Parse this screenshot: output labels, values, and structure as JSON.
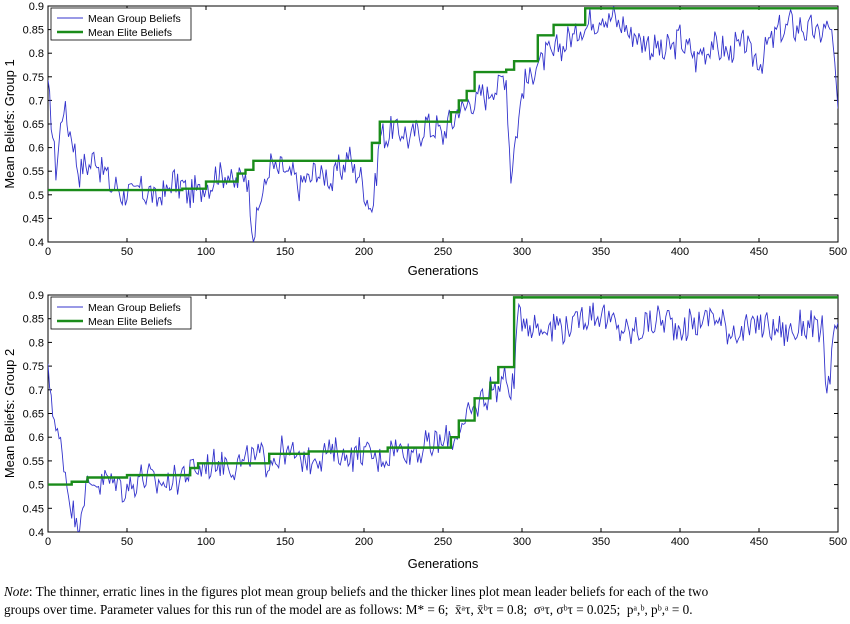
{
  "chart_data": [
    {
      "type": "line",
      "ylabel": "Mean Beliefs: Group 1",
      "xlabel": "Generations",
      "xlim": [
        0,
        500
      ],
      "ylim": [
        0.4,
        0.9
      ],
      "xticks": [
        "0",
        "50",
        "100",
        "150",
        "200",
        "250",
        "300",
        "350",
        "400",
        "450",
        "500"
      ],
      "yticks": [
        "0.4",
        "0.45",
        "0.5",
        "0.55",
        "0.6",
        "0.65",
        "0.7",
        "0.75",
        "0.8",
        "0.85",
        "0.9"
      ],
      "grid": false,
      "legend_position": "top-left",
      "series": [
        {
          "name": "Mean Group Beliefs",
          "color": "#3333cc",
          "style": "thin-erratic",
          "anchors": [
            [
              0,
              0.72
            ],
            [
              5,
              0.56
            ],
            [
              10,
              0.69
            ],
            [
              20,
              0.55
            ],
            [
              30,
              0.58
            ],
            [
              40,
              0.52
            ],
            [
              50,
              0.5
            ],
            [
              60,
              0.51
            ],
            [
              70,
              0.49
            ],
            [
              80,
              0.53
            ],
            [
              90,
              0.5
            ],
            [
              100,
              0.52
            ],
            [
              110,
              0.55
            ],
            [
              120,
              0.52
            ],
            [
              125,
              0.56
            ],
            [
              130,
              0.42
            ],
            [
              140,
              0.56
            ],
            [
              150,
              0.55
            ],
            [
              160,
              0.52
            ],
            [
              170,
              0.55
            ],
            [
              180,
              0.53
            ],
            [
              190,
              0.58
            ],
            [
              200,
              0.52
            ],
            [
              205,
              0.46
            ],
            [
              210,
              0.62
            ],
            [
              220,
              0.64
            ],
            [
              230,
              0.62
            ],
            [
              240,
              0.65
            ],
            [
              250,
              0.63
            ],
            [
              260,
              0.68
            ],
            [
              270,
              0.7
            ],
            [
              280,
              0.72
            ],
            [
              290,
              0.75
            ],
            [
              293,
              0.54
            ],
            [
              300,
              0.72
            ],
            [
              310,
              0.78
            ],
            [
              320,
              0.8
            ],
            [
              330,
              0.83
            ],
            [
              340,
              0.86
            ],
            [
              350,
              0.88
            ],
            [
              360,
              0.87
            ],
            [
              370,
              0.84
            ],
            [
              380,
              0.82
            ],
            [
              390,
              0.8
            ],
            [
              400,
              0.83
            ],
            [
              410,
              0.79
            ],
            [
              420,
              0.82
            ],
            [
              430,
              0.8
            ],
            [
              440,
              0.82
            ],
            [
              450,
              0.78
            ],
            [
              460,
              0.84
            ],
            [
              470,
              0.86
            ],
            [
              480,
              0.85
            ],
            [
              490,
              0.84
            ],
            [
              495,
              0.87
            ],
            [
              500,
              0.68
            ]
          ]
        },
        {
          "name": "Mean Elite Beliefs",
          "color": "#1a8c1a",
          "style": "thick-step",
          "steps": [
            [
              0,
              0.51
            ],
            [
              85,
              0.513
            ],
            [
              100,
              0.528
            ],
            [
              120,
              0.545
            ],
            [
              125,
              0.553
            ],
            [
              130,
              0.572
            ],
            [
              205,
              0.61
            ],
            [
              210,
              0.655
            ],
            [
              255,
              0.675
            ],
            [
              260,
              0.7
            ],
            [
              265,
              0.72
            ],
            [
              270,
              0.76
            ],
            [
              290,
              0.765
            ],
            [
              295,
              0.783
            ],
            [
              310,
              0.838
            ],
            [
              320,
              0.86
            ],
            [
              340,
              0.895
            ],
            [
              500,
              0.895
            ]
          ]
        }
      ]
    },
    {
      "type": "line",
      "ylabel": "Mean Beliefs: Group 2",
      "xlabel": "Generations",
      "xlim": [
        0,
        500
      ],
      "ylim": [
        0.4,
        0.9
      ],
      "xticks": [
        "0",
        "50",
        "100",
        "150",
        "200",
        "250",
        "300",
        "350",
        "400",
        "450",
        "500"
      ],
      "yticks": [
        "0.4",
        "0.45",
        "0.5",
        "0.55",
        "0.6",
        "0.65",
        "0.7",
        "0.75",
        "0.8",
        "0.85",
        "0.9"
      ],
      "grid": false,
      "legend_position": "top-left",
      "series": [
        {
          "name": "Mean Group Beliefs",
          "color": "#3333cc",
          "style": "thin-erratic",
          "anchors": [
            [
              0,
              0.73
            ],
            [
              5,
              0.62
            ],
            [
              10,
              0.55
            ],
            [
              15,
              0.45
            ],
            [
              18,
              0.41
            ],
            [
              25,
              0.5
            ],
            [
              40,
              0.51
            ],
            [
              50,
              0.49
            ],
            [
              60,
              0.52
            ],
            [
              70,
              0.5
            ],
            [
              80,
              0.51
            ],
            [
              90,
              0.53
            ],
            [
              100,
              0.54
            ],
            [
              110,
              0.55
            ],
            [
              120,
              0.54
            ],
            [
              130,
              0.56
            ],
            [
              140,
              0.55
            ],
            [
              150,
              0.57
            ],
            [
              160,
              0.55
            ],
            [
              170,
              0.56
            ],
            [
              180,
              0.57
            ],
            [
              190,
              0.56
            ],
            [
              200,
              0.57
            ],
            [
              210,
              0.55
            ],
            [
              220,
              0.58
            ],
            [
              230,
              0.57
            ],
            [
              240,
              0.58
            ],
            [
              250,
              0.59
            ],
            [
              260,
              0.61
            ],
            [
              270,
              0.66
            ],
            [
              280,
              0.7
            ],
            [
              290,
              0.72
            ],
            [
              295,
              0.7
            ],
            [
              297,
              0.86
            ],
            [
              310,
              0.83
            ],
            [
              320,
              0.84
            ],
            [
              330,
              0.83
            ],
            [
              340,
              0.86
            ],
            [
              350,
              0.86
            ],
            [
              360,
              0.83
            ],
            [
              370,
              0.82
            ],
            [
              380,
              0.84
            ],
            [
              390,
              0.85
            ],
            [
              400,
              0.83
            ],
            [
              410,
              0.84
            ],
            [
              420,
              0.86
            ],
            [
              430,
              0.83
            ],
            [
              440,
              0.82
            ],
            [
              450,
              0.84
            ],
            [
              460,
              0.83
            ],
            [
              470,
              0.82
            ],
            [
              480,
              0.84
            ],
            [
              490,
              0.82
            ],
            [
              493,
              0.7
            ],
            [
              500,
              0.85
            ]
          ]
        },
        {
          "name": "Mean Elite Beliefs",
          "color": "#1a8c1a",
          "style": "thick-step",
          "steps": [
            [
              0,
              0.5
            ],
            [
              15,
              0.506
            ],
            [
              25,
              0.515
            ],
            [
              50,
              0.52
            ],
            [
              90,
              0.535
            ],
            [
              95,
              0.545
            ],
            [
              140,
              0.565
            ],
            [
              165,
              0.57
            ],
            [
              215,
              0.578
            ],
            [
              255,
              0.6
            ],
            [
              260,
              0.635
            ],
            [
              270,
              0.682
            ],
            [
              280,
              0.715
            ],
            [
              285,
              0.748
            ],
            [
              295,
              0.895
            ],
            [
              500,
              0.897
            ]
          ]
        }
      ]
    }
  ],
  "note": {
    "label": "Note",
    "text1": ": The thinner, erratic lines in the figures plot mean group beliefs and the thicker lines plot mean leader beliefs for each of the two",
    "text2": "groups over time.  Parameter values for this run of the model are as follows: ",
    "params": {
      "m": "M* = 6;",
      "x": "x̄ᵃτ, x̄ᵇτ = 0.8;",
      "sigma": "σᵃτ, σᵇτ = 0.025;",
      "p": "pᵃ,ᵇ, pᵇ,ᵃ = 0."
    }
  }
}
